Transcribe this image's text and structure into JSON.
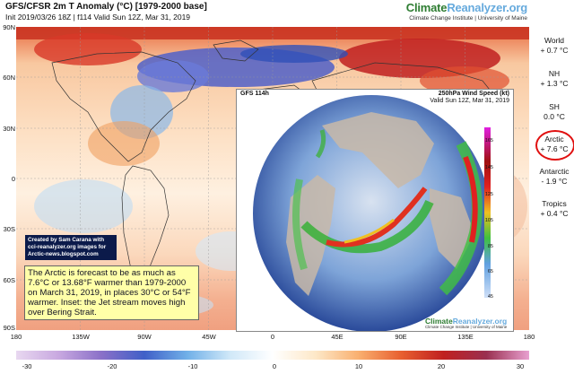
{
  "header": {
    "title": "GFS/CFSR 2m T Anomaly (°C) [1979-2000 base]",
    "subtitle": "Init 2019/03/26 18Z | f114 Valid Sun 12Z, Mar 31, 2019",
    "brand_a": "Climate",
    "brand_b": "Reanalyzer.org",
    "brand_sub": "Climate Change Institute | University of Maine"
  },
  "axes": {
    "lat_labels": [
      "90N",
      "60N",
      "30N",
      "0",
      "30S",
      "60S",
      "90S"
    ],
    "lon_labels": [
      "180",
      "135W",
      "90W",
      "45W",
      "0",
      "45E",
      "90E",
      "135E",
      "180"
    ]
  },
  "stats": [
    {
      "label": "World",
      "value": "+ 0.7 °C"
    },
    {
      "label": "NH",
      "value": "+ 1.3 °C"
    },
    {
      "label": "SH",
      "value": "0.0 °C"
    },
    {
      "label": "Arctic",
      "value": "+ 7.6 °C"
    },
    {
      "label": "Antarctic",
      "value": "- 1.9 °C"
    },
    {
      "label": "Tropics",
      "value": "+ 0.4 °C"
    }
  ],
  "colorbar": {
    "ticks": [
      "-30",
      "-20",
      "-10",
      "0",
      "10",
      "20",
      "30"
    ],
    "colors": [
      "#e8d8f0",
      "#c8a8e0",
      "#8a70c8",
      "#4060c8",
      "#70b0e8",
      "#d0e8f8",
      "#ffffff",
      "#fde8c8",
      "#f9b070",
      "#e86030",
      "#c02020",
      "#9a3050",
      "#e8a0d0"
    ]
  },
  "credit": {
    "line1": "Created by Sam Carana with",
    "line2": "cci-reanalyzer.org images for",
    "line3": "Arctic-news.blogspot.com"
  },
  "note": "The Arctic is forecast to be as much as 7.6°C or 13.68°F warmer than 1979-2000 on March 31, 2019, in places 30°C or 54°F warmer.   Inset: the Jet stream moves high over Bering Strait.",
  "inset": {
    "left_title": "GFS 114h",
    "right_title": "250hPa Wind Speed (kt)",
    "valid": "Valid Sun 12Z, Mar 31, 2019",
    "scale_ticks": [
      "165",
      "145",
      "125",
      "105",
      "85",
      "65",
      "45"
    ],
    "brand_a": "Climate",
    "brand_b": "Reanalyzer.org",
    "brand_sub": "Climate Change Institute | University of Maine"
  },
  "highlight_color": "#e01010"
}
